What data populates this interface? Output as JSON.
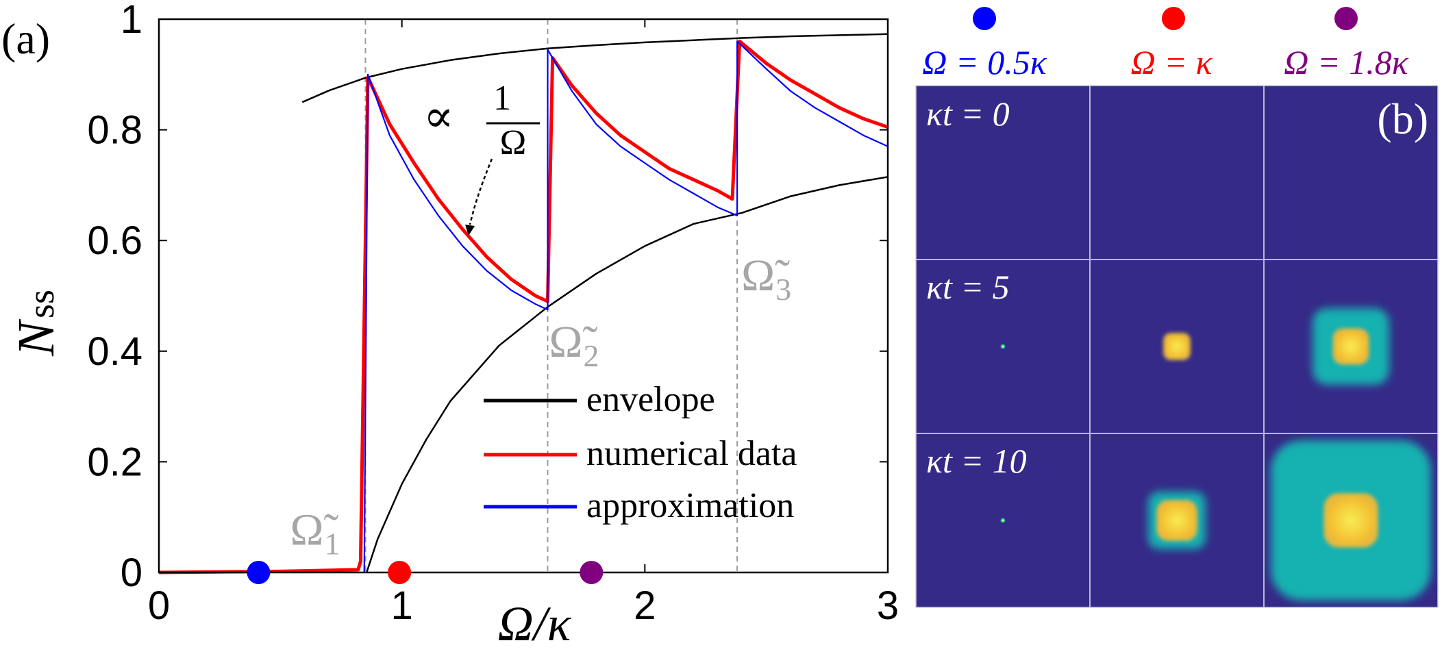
{
  "chart_data": [
    {
      "panel_label": "(a)",
      "type": "line",
      "xlabel": "Ω/κ",
      "ylabel": "N",
      "ylabel_sub": "ss",
      "xlim": [
        0,
        3
      ],
      "ylim": [
        0,
        1
      ],
      "x_ticks": [
        0,
        1,
        2,
        3
      ],
      "x_tick_labels": [
        "0",
        "1",
        "2",
        "3"
      ],
      "y_ticks": [
        0,
        0.2,
        0.4,
        0.6,
        0.8,
        1
      ],
      "y_tick_labels": [
        "0",
        "0.2",
        "0.4",
        "0.6",
        "0.8",
        "1"
      ],
      "grid": false,
      "legend_position": "bottom-right",
      "legend": [
        {
          "label": "envelope",
          "color": "#000000"
        },
        {
          "label": "numerical data",
          "color": "#ff0000"
        },
        {
          "label": "approximation",
          "color": "#0000ff"
        }
      ],
      "thresholds": [
        {
          "x": 0.85,
          "label": "Ω̃",
          "sub": "1",
          "label_y": 0.05
        },
        {
          "x": 1.6,
          "label": "Ω̃",
          "sub": "2",
          "label_y": 0.39
        },
        {
          "x": 2.38,
          "label": "Ω̃",
          "sub": "3",
          "label_y": 0.51
        }
      ],
      "annotation": {
        "text": "∝",
        "numerator": "1",
        "denominator": "Ω",
        "arrow_to": [
          1.27,
          0.62
        ]
      },
      "series": [
        {
          "name": "envelope",
          "color": "#000000",
          "segments": [
            [
              [
                0.59,
                0.85
              ],
              [
                0.7,
                0.871
              ],
              [
                0.85,
                0.894
              ],
              [
                1.0,
                0.91
              ],
              [
                1.2,
                0.926
              ],
              [
                1.4,
                0.938
              ],
              [
                1.6,
                0.947
              ],
              [
                1.8,
                0.953
              ],
              [
                2.0,
                0.958
              ],
              [
                2.2,
                0.962
              ],
              [
                2.4,
                0.966
              ],
              [
                2.6,
                0.969
              ],
              [
                2.8,
                0.971
              ],
              [
                3.0,
                0.973
              ]
            ],
            [
              [
                0.855,
                0.0
              ],
              [
                0.9,
                0.06
              ],
              [
                1.0,
                0.16
              ],
              [
                1.1,
                0.24
              ],
              [
                1.2,
                0.31
              ],
              [
                1.4,
                0.41
              ],
              [
                1.6,
                0.48
              ],
              [
                1.8,
                0.54
              ],
              [
                2.0,
                0.59
              ],
              [
                2.2,
                0.63
              ],
              [
                2.4,
                0.65
              ],
              [
                2.6,
                0.68
              ],
              [
                2.8,
                0.7
              ],
              [
                3.0,
                0.715
              ]
            ]
          ]
        },
        {
          "name": "numerical data",
          "color": "#ff0000",
          "segments": [
            [
              [
                0.0,
                0.0
              ],
              [
                0.5,
                0.002
              ],
              [
                0.82,
                0.005
              ],
              [
                0.83,
                0.02
              ],
              [
                0.86,
                0.895
              ],
              [
                0.95,
                0.81
              ],
              [
                1.05,
                0.74
              ],
              [
                1.15,
                0.675
              ],
              [
                1.25,
                0.62
              ],
              [
                1.35,
                0.57
              ],
              [
                1.45,
                0.53
              ],
              [
                1.55,
                0.5
              ],
              [
                1.6,
                0.49
              ],
              [
                1.62,
                0.93
              ],
              [
                1.7,
                0.88
              ],
              [
                1.8,
                0.83
              ],
              [
                1.9,
                0.79
              ],
              [
                2.0,
                0.76
              ],
              [
                2.1,
                0.73
              ],
              [
                2.2,
                0.71
              ],
              [
                2.3,
                0.69
              ],
              [
                2.36,
                0.675
              ],
              [
                2.39,
                0.96
              ],
              [
                2.5,
                0.92
              ],
              [
                2.6,
                0.89
              ],
              [
                2.7,
                0.865
              ],
              [
                2.8,
                0.84
              ],
              [
                2.9,
                0.82
              ],
              [
                3.0,
                0.805
              ]
            ]
          ]
        },
        {
          "name": "approximation",
          "color": "#0000ff",
          "segments": [
            [
              [
                0.845,
                0.0
              ],
              [
                0.86,
                0.9
              ],
              [
                0.95,
                0.79
              ],
              [
                1.05,
                0.71
              ],
              [
                1.15,
                0.645
              ],
              [
                1.25,
                0.59
              ],
              [
                1.35,
                0.545
              ],
              [
                1.45,
                0.51
              ],
              [
                1.55,
                0.485
              ],
              [
                1.6,
                0.475
              ],
              [
                1.6,
                0.945
              ],
              [
                1.7,
                0.87
              ],
              [
                1.8,
                0.81
              ],
              [
                1.9,
                0.77
              ],
              [
                2.0,
                0.74
              ],
              [
                2.1,
                0.71
              ],
              [
                2.2,
                0.685
              ],
              [
                2.3,
                0.66
              ],
              [
                2.38,
                0.645
              ],
              [
                2.38,
                0.96
              ],
              [
                2.5,
                0.91
              ],
              [
                2.6,
                0.87
              ],
              [
                2.7,
                0.84
              ],
              [
                2.8,
                0.815
              ],
              [
                2.9,
                0.79
              ],
              [
                3.0,
                0.77
              ]
            ]
          ]
        }
      ],
      "markers": [
        {
          "x": 0.41,
          "y": 0,
          "color": "#0000ff"
        },
        {
          "x": 0.99,
          "y": 0,
          "color": "#ff0000"
        },
        {
          "x": 1.78,
          "y": 0,
          "color": "#800080"
        }
      ]
    },
    {
      "panel_label": "(b)",
      "type": "heatmap",
      "background_color": "#352a87",
      "columns": [
        {
          "label": "Ω = 0.5κ",
          "color": "#0000ff",
          "dot_color": "#0000ff"
        },
        {
          "label": "Ω = κ",
          "color": "#ff0000",
          "dot_color": "#ff0000"
        },
        {
          "label": "Ω = 1.8κ",
          "color": "#800080",
          "dot_color": "#800080"
        }
      ],
      "rows": [
        {
          "label": "κt = 0",
          "cells": [
            {
              "outer": 0,
              "inner": 0
            },
            {
              "outer": 0,
              "inner": 0
            },
            {
              "outer": 0,
              "inner": 0
            }
          ]
        },
        {
          "label": "κt = 5",
          "cells": [
            {
              "outer": 0,
              "inner": 0.02
            },
            {
              "outer": 0.07,
              "inner": 0.06
            },
            {
              "outer": 0.44,
              "inner": 0.08
            }
          ]
        },
        {
          "label": "κt = 10",
          "cells": [
            {
              "outer": 0,
              "inner": 0.02
            },
            {
              "outer": 0.33,
              "inner": 0.09
            },
            {
              "outer": 0.92,
              "inner": 0.12
            }
          ]
        }
      ],
      "colors": {
        "outer": "#17b1b1",
        "inner": "#f4c132",
        "center": "#f7ed56"
      }
    }
  ]
}
